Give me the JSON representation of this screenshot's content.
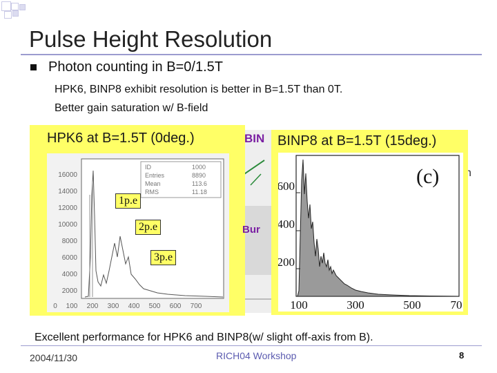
{
  "slide": {
    "title": "Pulse Height Resolution",
    "bullet": "Photon counting in B=0/1.5T",
    "sub_points": [
      "HPK6, BINP8 exhibit resolution is better in B=1.5T than 0T.",
      "Better gain saturation w/ B-field"
    ],
    "footer_note": "Excellent performance for HPK6 and BINP8(w/ slight off-axis from B).",
    "date": "2004/11/30",
    "workshop": "RICH04 Workshop",
    "page_number": "8"
  },
  "left_panel": {
    "title": "HPK6 at B=1.5T (0deg.)",
    "stats": [
      {
        "key": "ID",
        "value": "1000"
      },
      {
        "key": "Entries",
        "value": "8890"
      },
      {
        "key": "Mean",
        "value": "113.6"
      },
      {
        "key": "RMS",
        "value": "11.18"
      }
    ],
    "y_ticks": [
      "16000",
      "14000",
      "12000",
      "10000",
      "8000",
      "6000",
      "4000",
      "2000"
    ],
    "x_ticks": [
      "0",
      "100",
      "200",
      "300",
      "400",
      "500",
      "600",
      "700"
    ],
    "peak_labels": [
      "1p.e",
      "2p.e",
      "3p.e"
    ]
  },
  "middle_obscured": {
    "binp_label": "BIN",
    "bu_label": "Bur",
    "n_text": "n"
  },
  "right_panel": {
    "title": "BINP8 at B=1.5T (15deg.)",
    "panel_label": "(c)",
    "y_ticks": [
      "600",
      "400",
      "200"
    ],
    "x_ticks": [
      "100",
      "300",
      "500",
      "70"
    ]
  },
  "colors": {
    "panel_bg": "#ffff66",
    "accent_rule": "#9b9bcf",
    "obscured_label": "#7a1fa2",
    "workshop_text": "#5b5bb0"
  }
}
